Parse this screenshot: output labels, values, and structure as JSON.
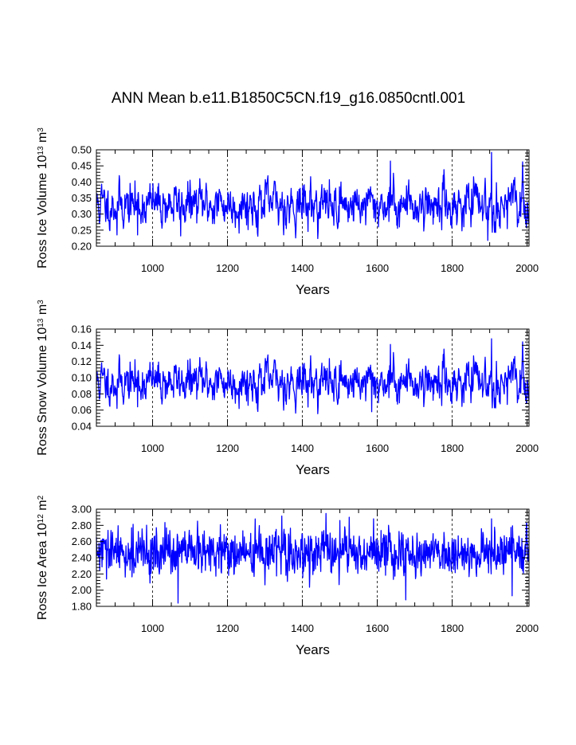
{
  "title": "ANN Mean b.e11.B1850C5CN.f19_g16.0850cntl.001",
  "chart_data": [
    {
      "type": "line",
      "title": "",
      "xlabel": "Years",
      "ylabel": {
        "prefix": "Ross Ice Volume 10",
        "exp1": "13",
        "mid": " m",
        "exp2": "3"
      },
      "xlim": [
        850,
        2005
      ],
      "ylim": [
        0.2,
        0.5
      ],
      "xticks": [
        1000,
        1200,
        1400,
        1600,
        1800,
        2000
      ],
      "xtick_labels": [
        "1000",
        "1200",
        "1400",
        "1600",
        "1800",
        "2000"
      ],
      "yticks": [
        0.2,
        0.25,
        0.3,
        0.35,
        0.4,
        0.45,
        0.5
      ],
      "ytick_labels": [
        "0.20",
        "0.25",
        "0.30",
        "0.35",
        "0.40",
        "0.45",
        "0.50"
      ],
      "grid": "dashed vertical at major x ticks",
      "series": [
        {
          "name": "Ross Ice Volume",
          "color": "#0000ff",
          "x_start": 850,
          "x_step": 1,
          "mean": 0.33,
          "std": 0.035,
          "noise_seed": 11,
          "ar": 0.55,
          "features": [
            [
              905,
              0.235
            ],
            [
              960,
              0.235
            ],
            [
              1075,
              0.232
            ],
            [
              1635,
              0.465
            ],
            [
              1905,
              0.492
            ],
            [
              1895,
              0.218
            ]
          ]
        }
      ]
    },
    {
      "type": "line",
      "title": "",
      "xlabel": "Years",
      "ylabel": {
        "prefix": "Ross Snow Volume 10",
        "exp1": "13",
        "mid": " m",
        "exp2": "3"
      },
      "xlim": [
        850,
        2005
      ],
      "ylim": [
        0.04,
        0.16
      ],
      "xticks": [
        1000,
        1200,
        1400,
        1600,
        1800,
        2000
      ],
      "xtick_labels": [
        "1000",
        "1200",
        "1400",
        "1600",
        "1800",
        "2000"
      ],
      "yticks": [
        0.04,
        0.06,
        0.08,
        0.1,
        0.12,
        0.14,
        0.16
      ],
      "ytick_labels": [
        "0.04",
        "0.06",
        "0.08",
        "0.10",
        "0.12",
        "0.14",
        "0.16"
      ],
      "grid": "dashed vertical at major x ticks",
      "series": [
        {
          "name": "Ross Snow Volume",
          "color": "#0000ff",
          "x_start": 850,
          "x_step": 1,
          "mean": 0.095,
          "std": 0.013,
          "noise_seed": 11,
          "ar": 0.55,
          "features": [
            [
              905,
              0.062
            ],
            [
              960,
              0.064
            ],
            [
              1635,
              0.141
            ],
            [
              1905,
              0.148
            ],
            [
              1585,
              0.058
            ]
          ]
        }
      ]
    },
    {
      "type": "line",
      "title": "",
      "xlabel": "Years",
      "ylabel": {
        "prefix": "Ross Ice Area 10",
        "exp1": "12",
        "mid": " m",
        "exp2": "2"
      },
      "xlim": [
        850,
        2005
      ],
      "ylim": [
        1.8,
        3.0
      ],
      "xticks": [
        1000,
        1200,
        1400,
        1600,
        1800,
        2000
      ],
      "xtick_labels": [
        "1000",
        "1200",
        "1400",
        "1600",
        "1800",
        "2000"
      ],
      "yticks": [
        1.8,
        2.0,
        2.2,
        2.4,
        2.6,
        2.8,
        3.0
      ],
      "ytick_labels": [
        "1.80",
        "2.00",
        "2.20",
        "2.40",
        "2.60",
        "2.80",
        "3.00"
      ],
      "grid": "dashed vertical at major x ticks",
      "series": [
        {
          "name": "Ross Ice Area",
          "color": "#0000ff",
          "x_start": 850,
          "x_step": 1,
          "mean": 2.46,
          "std": 0.14,
          "noise_seed": 29,
          "ar": 0.2,
          "features": [
            [
              1068,
              1.84
            ],
            [
              1676,
              1.88
            ],
            [
              1960,
              1.93
            ],
            [
              1500,
              2.86
            ],
            [
              1525,
              2.9
            ],
            [
              1590,
              2.88
            ],
            [
              1905,
              2.88
            ]
          ]
        }
      ]
    }
  ]
}
